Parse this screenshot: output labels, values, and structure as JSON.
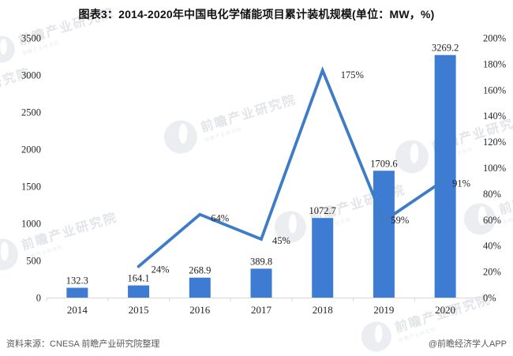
{
  "title": "图表3：2014-2020年中国电化学储能项目累计装机规模(单位：MW，%)",
  "footer": {
    "source": "资料来源：CNESA 前瞻产业研究院整理",
    "credit": "@前瞻经济学人APP"
  },
  "watermark": {
    "text": "前瞻产业研究院"
  },
  "colors": {
    "bar": "#3d7cd2",
    "line": "#3e7cc6",
    "axis_line": "#d6d6d6",
    "label_text": "#1f1f1f",
    "footer_text": "#595959"
  },
  "chart_data": {
    "type": "bar",
    "subtype": "bar+line combo, dual axis",
    "title": "图表3：2014-2020年中国电化学储能项目累计装机规模(单位：MW，%)",
    "xlabel": "",
    "ylabel_left": "MW",
    "ylabel_right": "%",
    "grid": false,
    "legend": "none",
    "categories": [
      "2014",
      "2015",
      "2016",
      "2017",
      "2018",
      "2019",
      "2020"
    ],
    "series": [
      {
        "name": "cumulative-installed-capacity-mw",
        "type": "bar",
        "axis": "left",
        "values": [
          132.3,
          164.1,
          268.9,
          389.8,
          1072.7,
          1709.6,
          3269.2
        ],
        "labels": [
          "132.3",
          "164.1",
          "268.9",
          "389.8",
          "1072.7",
          "1709.6",
          "3269.2"
        ]
      },
      {
        "name": "yoy-growth-pct",
        "type": "line",
        "axis": "right",
        "values": [
          null,
          24,
          64,
          45,
          175,
          59,
          91
        ],
        "labels": [
          "",
          "24%",
          "64%",
          "45%",
          "175%",
          "59%",
          "91%"
        ]
      }
    ],
    "left_axis": {
      "min": 0,
      "max": 3500,
      "step": 500,
      "tick_labels": [
        "3500",
        "3000",
        "2500",
        "2000",
        "1500",
        "1000",
        "500",
        "0"
      ]
    },
    "right_axis": {
      "min": 0,
      "max": 200,
      "step": 20,
      "tick_labels": [
        "200%",
        "180%",
        "160%",
        "140%",
        "120%",
        "100%",
        "80%",
        "60%",
        "40%",
        "20%",
        "0%"
      ]
    }
  }
}
